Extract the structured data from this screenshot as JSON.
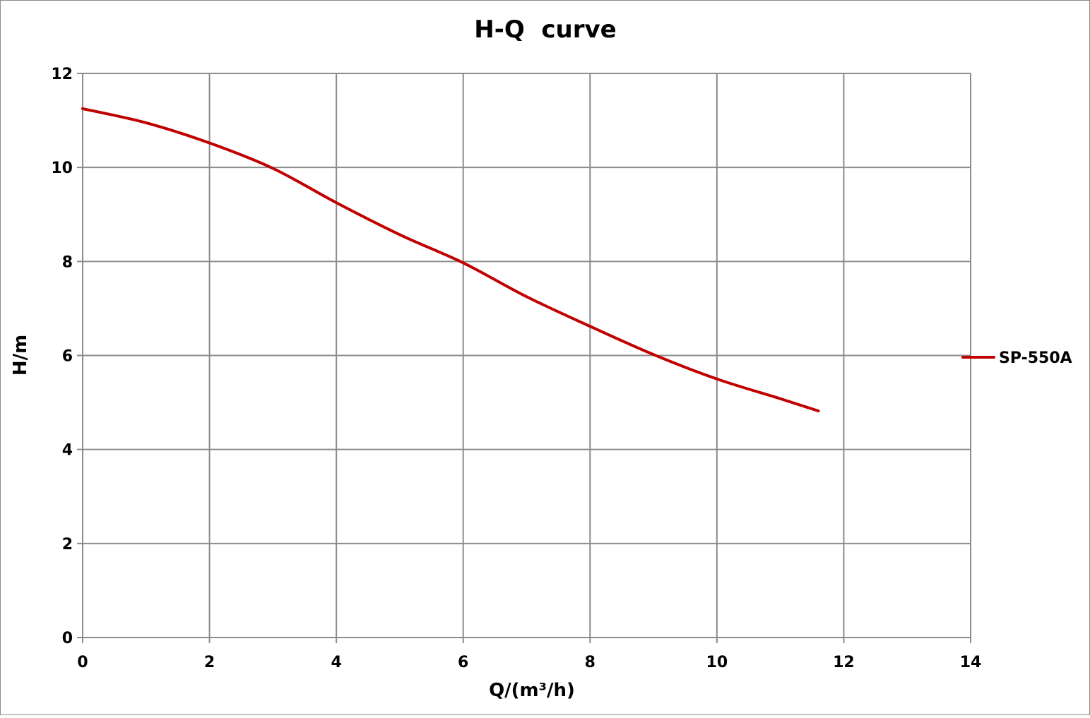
{
  "chart_data": {
    "type": "line",
    "title": "H-Q  curve",
    "xlabel": "Q/(m³/h)",
    "ylabel": "H/m",
    "xlim": [
      0,
      14
    ],
    "ylim": [
      0,
      12
    ],
    "xticks": [
      0,
      2,
      4,
      6,
      8,
      10,
      12,
      14
    ],
    "yticks": [
      0,
      2,
      4,
      6,
      8,
      10,
      12
    ],
    "grid": true,
    "legend_position": "right",
    "series": [
      {
        "name": "SP-550A",
        "color": "#c00000",
        "x": [
          0,
          1,
          2,
          3,
          4,
          5,
          6,
          7,
          8,
          9,
          10,
          11,
          11.6
        ],
        "y": [
          11.25,
          10.95,
          10.52,
          9.98,
          9.25,
          8.57,
          7.97,
          7.25,
          6.62,
          6.02,
          5.5,
          5.08,
          4.82
        ]
      }
    ]
  }
}
